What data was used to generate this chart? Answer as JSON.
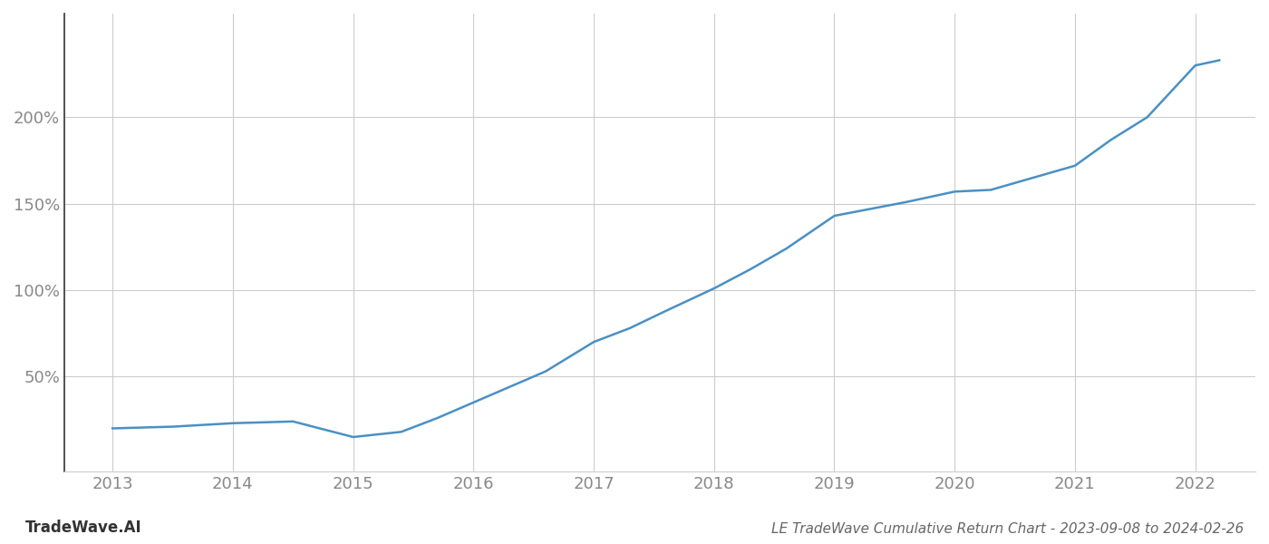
{
  "title": "LE TradeWave Cumulative Return Chart - 2023-09-08 to 2024-02-26",
  "watermark": "TradeWave.AI",
  "line_color": "#4a90c4",
  "background_color": "#ffffff",
  "grid_color": "#cccccc",
  "x_years": [
    2013,
    2014,
    2015,
    2016,
    2017,
    2018,
    2019,
    2020,
    2021,
    2022
  ],
  "data_points": {
    "2013.0": 20,
    "2013.5": 21,
    "2014.0": 23,
    "2014.5": 24,
    "2015.0": 15,
    "2015.4": 18,
    "2015.7": 26,
    "2016.0": 35,
    "2016.3": 44,
    "2016.6": 53,
    "2017.0": 70,
    "2017.3": 78,
    "2017.6": 88,
    "2018.0": 101,
    "2018.3": 112,
    "2018.6": 124,
    "2019.0": 143,
    "2019.3": 147,
    "2019.6": 151,
    "2020.0": 157,
    "2020.3": 158,
    "2020.6": 164,
    "2021.0": 172,
    "2021.3": 187,
    "2021.6": 200,
    "2022.0": 230,
    "2022.2": 233
  },
  "yticks": [
    50,
    100,
    150,
    200
  ],
  "ylim": [
    -5,
    260
  ],
  "xlim": [
    2012.6,
    2022.5
  ],
  "tick_label_color": "#888888",
  "left_spine_color": "#333333",
  "bottom_spine_color": "#cccccc",
  "title_color": "#666666",
  "watermark_color": "#333333",
  "title_fontsize": 11,
  "tick_fontsize": 13,
  "watermark_fontsize": 12,
  "line_width": 1.8
}
